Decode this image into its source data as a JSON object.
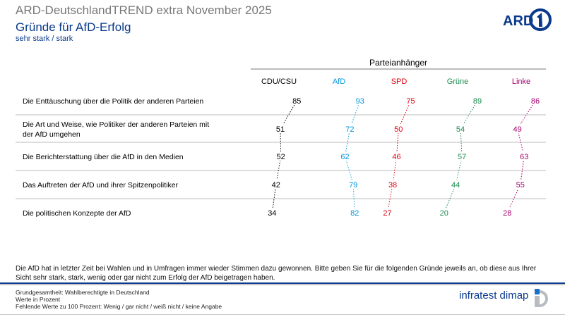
{
  "header": {
    "title": "ARD-DeutschlandTREND extra November 2025",
    "subtitle": "Gründe für AfD-Erfolg",
    "measure": "sehr stark / stark",
    "logo": "ARD 1"
  },
  "chart_data": {
    "type": "table",
    "group_header": "Parteianhänger",
    "columns": [
      {
        "name": "CDU/CSU",
        "color": "#000000"
      },
      {
        "name": "AfD",
        "color": "#0095db"
      },
      {
        "name": "SPD",
        "color": "#e3000f"
      },
      {
        "name": "Grüne",
        "color": "#1a8c4e"
      },
      {
        "name": "Linke",
        "color": "#a6006b"
      }
    ],
    "rows": [
      {
        "label": [
          "Die Enttäuschung über die Politik der anderen Parteien"
        ],
        "values": [
          85,
          93,
          75,
          89,
          86
        ]
      },
      {
        "label": [
          "Die Art und Weise, wie Politiker der anderen Parteien mit",
          "der AfD umgehen"
        ],
        "values": [
          51,
          72,
          50,
          54,
          49
        ]
      },
      {
        "label": [
          "Die Berichterstattung über die AfD in den Medien"
        ],
        "values": [
          52,
          62,
          46,
          57,
          63
        ]
      },
      {
        "label": [
          "Das Auftreten der AfD und ihrer Spitzenpolitiker"
        ],
        "values": [
          42,
          79,
          38,
          44,
          55
        ]
      },
      {
        "label": [
          "Die politischen Konzepte der AfD"
        ],
        "values": [
          34,
          82,
          27,
          20,
          28
        ]
      }
    ],
    "unit": "Prozent",
    "connector": "dotted"
  },
  "footer": {
    "question": "Die AfD hat in letzter Zeit bei Wahlen und in Umfragen immer wieder Stimmen dazu gewonnen. Bitte geben Sie für die folgenden Gründe jeweils an, ob diese aus Ihrer Sicht sehr stark, stark, wenig oder gar nicht zum Erfolg der AfD beigetragen haben.",
    "notes": [
      "Grundgesamtheit: Wahlberechtigte in Deutschland",
      "Werte in Prozent",
      "Fehlende Werte zu 100 Prozent: Wenig / gar nicht / weiß nicht / keine Angabe"
    ],
    "brand": "infratest dimap"
  }
}
